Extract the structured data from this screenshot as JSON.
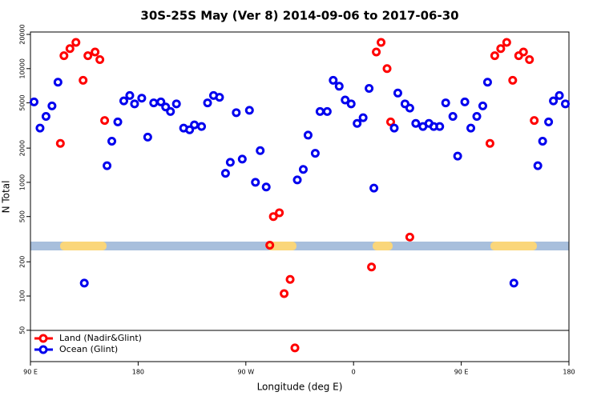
{
  "chart_data": {
    "type": "scatter",
    "title": "30S-25S May (Ver 8)   2014-09-06 to 2017-06-30",
    "xlabel": "Longitude (deg E)",
    "ylabel": "N Total",
    "xlim": [
      90,
      540
    ],
    "xticks": [
      {
        "value": 90,
        "label": "90 E"
      },
      180,
      {
        "value": 270,
        "label": "90 W"
      },
      {
        "value": 360,
        "label": "0"
      },
      {
        "value": 450,
        "label": "90 E"
      },
      {
        "value": 540,
        "label": "180"
      }
    ],
    "ylim": [
      26.5,
      21000
    ],
    "log_y": true,
    "yticks": [
      50,
      100,
      200,
      500,
      1000,
      2000,
      5000,
      10000,
      20000
    ],
    "legend": "bottom-left",
    "series": [
      {
        "name": "Land (Nadir&Glint)",
        "color": "#ff0000",
        "x": [
          115,
          118,
          123,
          128,
          134,
          138,
          144,
          148,
          152,
          290,
          293,
          298,
          302,
          307,
          311,
          375,
          379,
          383,
          388,
          391,
          407,
          474,
          478,
          483,
          488,
          493,
          498,
          502,
          507,
          511
        ],
        "values": [
          2200,
          13000,
          15000,
          17000,
          7900,
          13000,
          14000,
          12000,
          3500,
          280,
          500,
          540,
          105,
          140,
          35,
          180,
          14000,
          17000,
          10000,
          3400,
          330,
          2200,
          13000,
          15000,
          17000,
          7900,
          13000,
          14000,
          12000,
          3500
        ]
      },
      {
        "name": "Ocean (Glint)",
        "color": "#0000ee",
        "x": [
          93,
          98,
          103,
          108,
          113,
          135,
          154,
          158,
          163,
          168,
          173,
          177,
          183,
          188,
          193,
          199,
          203,
          207,
          212,
          218,
          223,
          227,
          233,
          238,
          243,
          248,
          253,
          257,
          262,
          267,
          273,
          278,
          282,
          287,
          313,
          318,
          322,
          328,
          332,
          338,
          343,
          348,
          353,
          358,
          363,
          368,
          373,
          377,
          394,
          397,
          403,
          407,
          412,
          418,
          423,
          427,
          432,
          437,
          443,
          447,
          453,
          458,
          463,
          468,
          472,
          494,
          514,
          518,
          523,
          527,
          532,
          537
        ],
        "values": [
          5100,
          3000,
          3800,
          4700,
          7600,
          130,
          1400,
          2300,
          3400,
          5200,
          5800,
          4900,
          5500,
          2500,
          5000,
          5100,
          4600,
          4200,
          4900,
          3000,
          2900,
          3200,
          3100,
          5000,
          5800,
          5600,
          1200,
          1500,
          4100,
          1600,
          4300,
          1000,
          1900,
          910,
          1050,
          1300,
          2600,
          1800,
          4200,
          4200,
          7900,
          7000,
          5300,
          4900,
          3300,
          3700,
          6700,
          890,
          3000,
          6100,
          4900,
          4500,
          3300,
          3100,
          3300,
          3100,
          3100,
          5000,
          3800,
          1700,
          5100,
          3000,
          3800,
          4700,
          7600,
          130,
          1400,
          2300,
          3400,
          5200,
          5800,
          4900
        ]
      }
    ]
  }
}
